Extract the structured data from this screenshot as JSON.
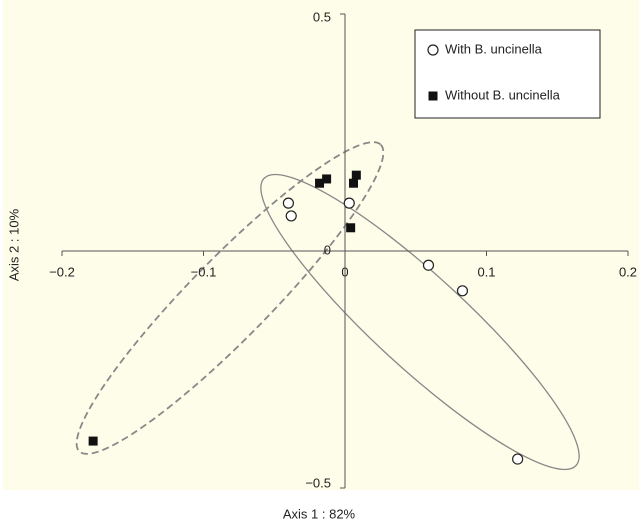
{
  "chart_data": {
    "type": "scatter",
    "xlabel": "Axis 1 : 82%",
    "ylabel": "Axis 2 : 10%",
    "xlim": [
      -0.2,
      0.2
    ],
    "ylim": [
      -0.5,
      0.5
    ],
    "xticks": [
      {
        "value": -0.2,
        "label": "−0.2"
      },
      {
        "value": -0.1,
        "label": "−0.1"
      },
      0,
      0.1,
      0.2
    ],
    "yticks": [
      {
        "value": -0.5,
        "label": "−0.5"
      },
      0,
      0.5
    ],
    "legend": "upper right",
    "series": [
      {
        "name": "With B. uncinella",
        "marker": "circle",
        "color": "#222222",
        "x": [
          -0.04,
          -0.038,
          0.003,
          0.059,
          0.083,
          0.122
        ],
        "values": [
          0.101,
          0.074,
          0.101,
          -0.03,
          -0.084,
          -0.439
        ]
      },
      {
        "name": "Without B. uncinella",
        "marker": "square",
        "color": "#111111",
        "x": [
          -0.018,
          -0.013,
          0.008,
          0.006,
          0.004,
          -0.178
        ],
        "values": [
          0.143,
          0.152,
          0.16,
          0.143,
          0.049,
          -0.401
        ]
      }
    ]
  }
}
